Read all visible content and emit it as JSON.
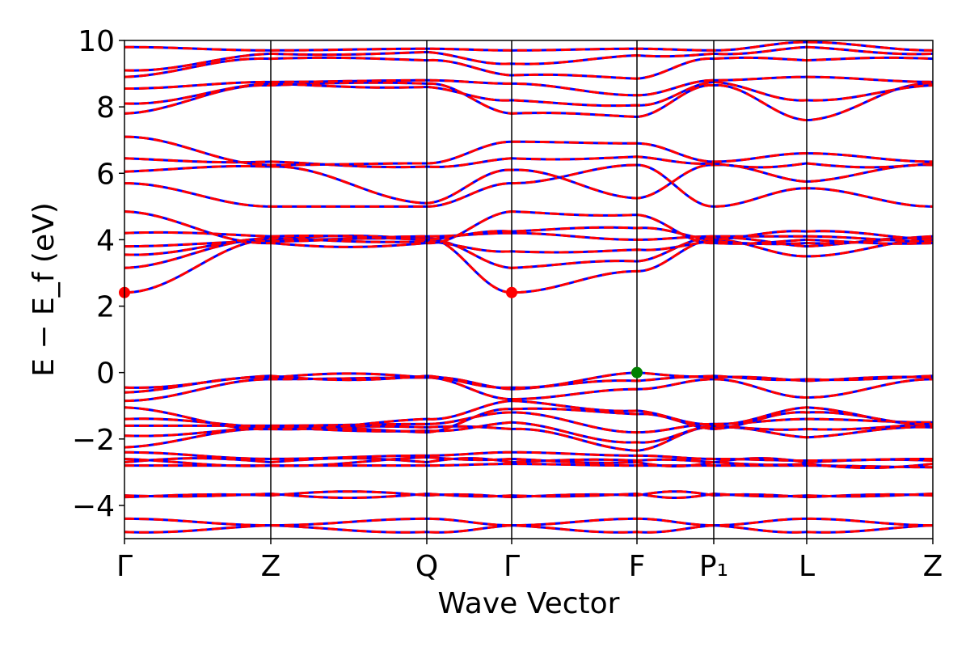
{
  "chart_data": {
    "type": "line",
    "title": "",
    "xlabel": "Wave Vector",
    "ylabel": "E − E_f (eV)",
    "ylim": [
      -5,
      10
    ],
    "yticks": [
      -4,
      -2,
      0,
      2,
      4,
      6,
      8,
      10
    ],
    "ytick_labels": [
      "−4",
      "−2",
      "0",
      "2",
      "4",
      "6",
      "8",
      "10"
    ],
    "kpath": [
      {
        "label": "Γ",
        "k": 0.0
      },
      {
        "label": "Z",
        "k": 0.181
      },
      {
        "label": "Q",
        "k": 0.374
      },
      {
        "label": "Γ",
        "k": 0.479
      },
      {
        "label": "F",
        "k": 0.634
      },
      {
        "label": "P₁",
        "k": 0.729
      },
      {
        "label": "L",
        "k": 0.844
      },
      {
        "label": "Z",
        "k": 1.0
      }
    ],
    "xlim": [
      0,
      1
    ],
    "series_colors": {
      "spin_up": "#0000ff",
      "spin_down": "#ff0000"
    },
    "markers": [
      {
        "name": "CBM",
        "k": 0.0,
        "E": 2.41,
        "color": "#ff0000"
      },
      {
        "name": "CBM",
        "k": 0.479,
        "E": 2.41,
        "color": "#ff0000"
      },
      {
        "name": "VBM",
        "k": 0.634,
        "E": 0.0,
        "color": "#008000"
      }
    ],
    "bands": [
      [
        -4.8,
        -4.6,
        -4.8,
        -4.6,
        -4.8,
        -4.6,
        -4.8,
        -4.6
      ],
      [
        -4.4,
        -4.6,
        -4.4,
        -4.6,
        -4.4,
        -4.6,
        -4.4,
        -4.6
      ],
      [
        -3.75,
        -3.7,
        -3.7,
        -3.75,
        -3.7,
        -3.7,
        -3.75,
        -3.7
      ],
      [
        -3.7,
        -3.65,
        -3.65,
        -3.7,
        -3.65,
        -3.65,
        -3.7,
        -3.65
      ],
      [
        -2.8,
        -2.8,
        -2.8,
        -2.75,
        -2.8,
        -2.8,
        -2.8,
        -2.85
      ],
      [
        -2.7,
        -2.7,
        -2.7,
        -2.7,
        -2.65,
        -2.7,
        -2.7,
        -2.65
      ],
      [
        -2.6,
        -2.8,
        -2.55,
        -2.6,
        -2.7,
        -2.7,
        -2.75,
        -2.75
      ],
      [
        -2.4,
        -2.6,
        -2.5,
        -2.4,
        -2.5,
        -2.6,
        -2.65,
        -2.6
      ],
      [
        -2.25,
        -1.7,
        -1.65,
        -1.7,
        -2.35,
        -1.65,
        -1.95,
        -1.65
      ],
      [
        -1.9,
        -1.65,
        -1.75,
        -1.5,
        -2.1,
        -1.6,
        -1.7,
        -1.55
      ],
      [
        -1.6,
        -1.6,
        -1.55,
        -1.2,
        -1.8,
        -1.55,
        -1.4,
        -1.5
      ],
      [
        -1.4,
        -1.65,
        -1.8,
        -1.1,
        -1.25,
        -1.7,
        -1.2,
        -1.6
      ],
      [
        -1.05,
        -1.7,
        -1.4,
        -0.85,
        -1.15,
        -1.55,
        -1.05,
        -1.55
      ],
      [
        -0.85,
        -0.2,
        -0.15,
        -0.8,
        -0.5,
        -0.2,
        -0.75,
        -0.2
      ],
      [
        -0.6,
        -0.15,
        -0.15,
        -0.5,
        -0.25,
        -0.15,
        -0.25,
        -0.15
      ],
      [
        -0.45,
        -0.1,
        -0.1,
        -0.45,
        0.0,
        -0.1,
        -0.2,
        -0.1
      ],
      [
        2.41,
        4.0,
        4.05,
        2.41,
        3.05,
        4.0,
        3.5,
        4.0
      ],
      [
        3.15,
        4.0,
        4.0,
        3.15,
        3.35,
        4.05,
        3.8,
        4.05
      ],
      [
        3.55,
        4.05,
        3.95,
        3.65,
        3.7,
        3.95,
        3.9,
        4.1
      ],
      [
        3.8,
        3.95,
        4.1,
        4.2,
        4.0,
        4.1,
        4.1,
        3.95
      ],
      [
        4.2,
        4.1,
        4.0,
        4.25,
        4.35,
        4.0,
        4.25,
        4.0
      ],
      [
        4.85,
        3.9,
        3.9,
        4.85,
        4.75,
        3.9,
        4.0,
        3.9
      ],
      [
        5.7,
        5.0,
        5.0,
        5.7,
        6.25,
        5.0,
        5.55,
        5.0
      ],
      [
        6.05,
        6.2,
        5.1,
        6.1,
        5.25,
        6.25,
        5.75,
        6.25
      ],
      [
        6.45,
        6.35,
        6.2,
        6.45,
        6.5,
        6.3,
        6.3,
        6.3
      ],
      [
        7.1,
        6.25,
        6.3,
        6.95,
        6.9,
        6.35,
        6.6,
        6.35
      ],
      [
        7.8,
        8.65,
        8.7,
        7.8,
        7.7,
        8.65,
        7.6,
        8.7
      ],
      [
        8.1,
        8.7,
        8.6,
        8.2,
        8.05,
        8.75,
        8.2,
        8.65
      ],
      [
        8.55,
        8.75,
        8.8,
        8.7,
        8.35,
        8.8,
        8.9,
        8.75
      ],
      [
        8.9,
        9.45,
        9.4,
        8.95,
        8.85,
        9.45,
        9.4,
        9.45
      ],
      [
        9.1,
        9.6,
        9.65,
        9.3,
        9.55,
        9.6,
        9.8,
        9.6
      ],
      [
        9.8,
        9.7,
        9.75,
        9.7,
        9.75,
        9.7,
        9.95,
        9.7
      ]
    ]
  }
}
